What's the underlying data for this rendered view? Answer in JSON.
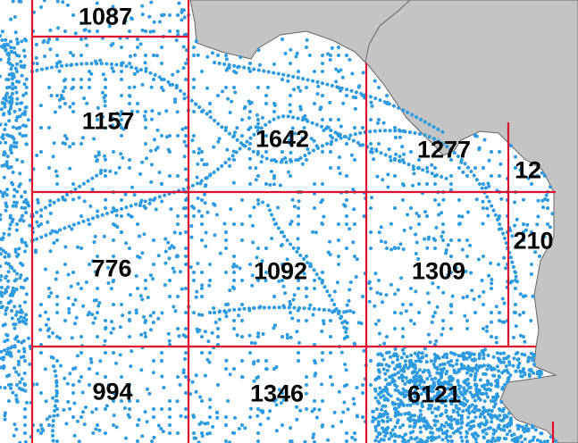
{
  "colors": {
    "water": "#ffffff",
    "land": "#c4c4c4",
    "coast": "#666666",
    "points": "#2e9be0",
    "grid": "#e0102e",
    "label": "#000000"
  },
  "cells": [
    {
      "id": "a1",
      "count": "1087"
    },
    {
      "id": "b1",
      "count": "1157"
    },
    {
      "id": "b2",
      "count": "1642"
    },
    {
      "id": "b3",
      "count": "1277"
    },
    {
      "id": "b4",
      "count": "12"
    },
    {
      "id": "c4",
      "count": "210"
    },
    {
      "id": "c1",
      "count": "776"
    },
    {
      "id": "c2",
      "count": "1092"
    },
    {
      "id": "c3",
      "count": "1309"
    },
    {
      "id": "d1",
      "count": "994"
    },
    {
      "id": "d2",
      "count": "1346"
    },
    {
      "id": "d3",
      "count": "6121"
    }
  ]
}
